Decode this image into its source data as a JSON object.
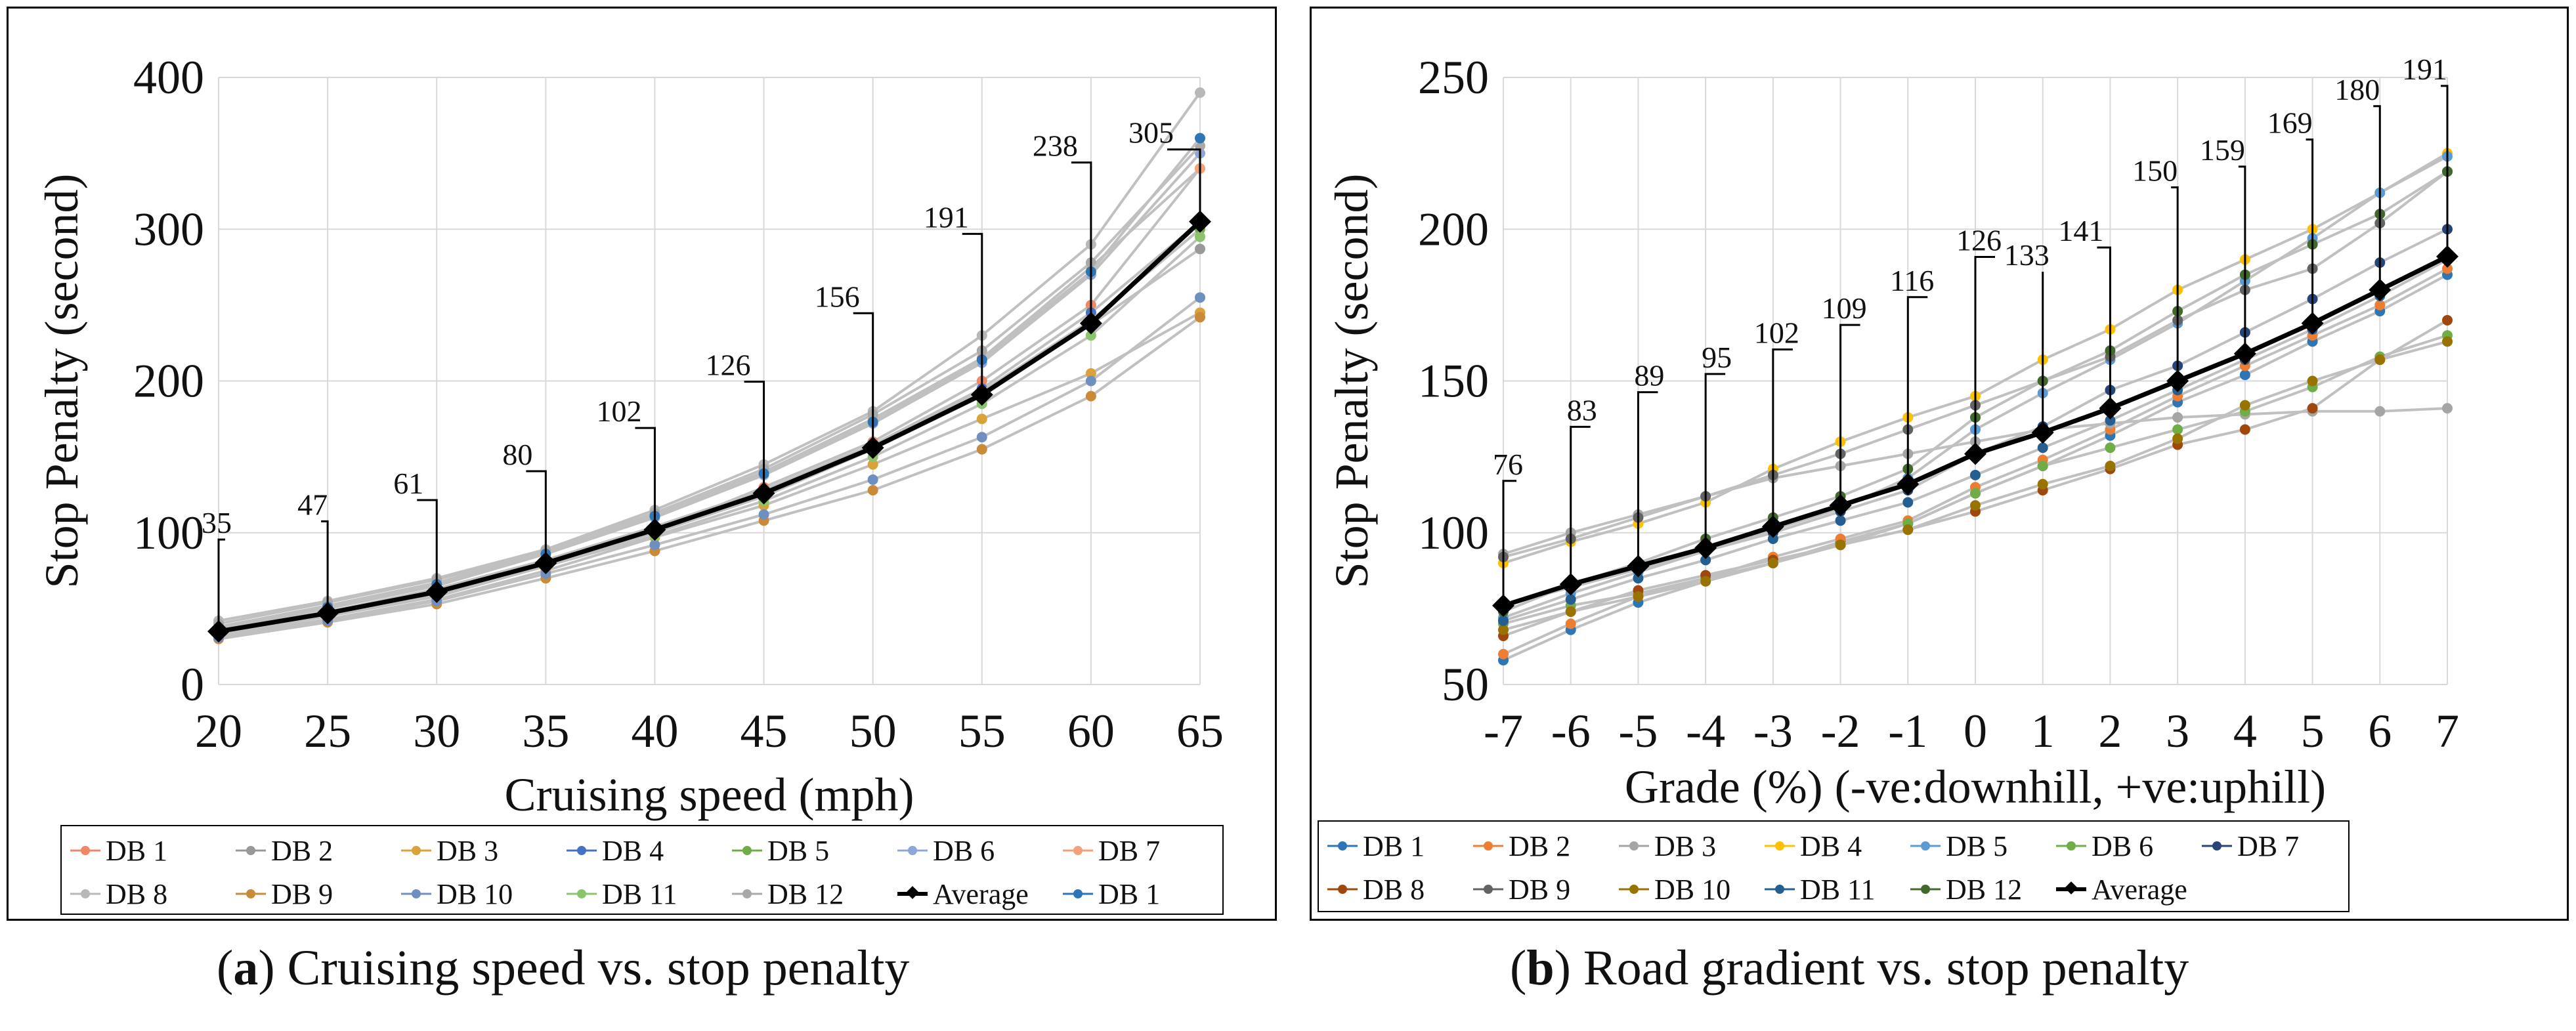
{
  "chart_data": [
    {
      "type": "line",
      "panel_letter": "a",
      "caption": "Cruising speed vs. stop penalty",
      "xlabel": "Cruising speed (mph)",
      "ylabel": "Stop Penalty (second)",
      "x": [
        20,
        25,
        30,
        35,
        40,
        45,
        50,
        55,
        60,
        65
      ],
      "xticks": [
        "20",
        "25",
        "30",
        "35",
        "40",
        "45",
        "50",
        "55",
        "60",
        "65"
      ],
      "yticks": [
        "0",
        "100",
        "200",
        "300",
        "400"
      ],
      "ylim": [
        0,
        400
      ],
      "grid": true,
      "legend_position": "bottom",
      "annotations": [
        "35",
        "47",
        "61",
        "80",
        "102",
        "126",
        "156",
        "191",
        "238",
        "305"
      ],
      "series": [
        {
          "name": "DB 1",
          "color": "#ee8866",
          "values": [
            33,
            45,
            58,
            78,
            101,
            130,
            160,
            200,
            250,
            340
          ]
        },
        {
          "name": "DB 2",
          "color": "#999999",
          "values": [
            34,
            46,
            59,
            79,
            100,
            124,
            155,
            190,
            237,
            287
          ]
        },
        {
          "name": "DB 3",
          "color": "#d9a23a",
          "values": [
            32,
            43,
            56,
            75,
            97,
            118,
            145,
            175,
            205,
            245
          ]
        },
        {
          "name": "DB 4",
          "color": "#4472c4",
          "values": [
            36,
            48,
            63,
            82,
            104,
            128,
            158,
            195,
            245,
            305
          ]
        },
        {
          "name": "DB 5",
          "color": "#70ad47",
          "values": [
            35,
            47,
            61,
            81,
            102,
            127,
            157,
            193,
            240,
            300
          ]
        },
        {
          "name": "DB 6",
          "color": "#8fa6d8",
          "values": [
            37,
            50,
            65,
            86,
            110,
            138,
            172,
            212,
            270,
            350
          ]
        },
        {
          "name": "DB 7",
          "color": "#f4a07a",
          "values": [
            38,
            52,
            67,
            87,
            112,
            140,
            175,
            215,
            275,
            340
          ]
        },
        {
          "name": "DB 8",
          "color": "#b8b8b8",
          "values": [
            42,
            55,
            70,
            89,
            115,
            145,
            180,
            230,
            290,
            390
          ]
        },
        {
          "name": "DB 9",
          "color": "#c98a3a",
          "values": [
            30,
            41,
            53,
            70,
            88,
            108,
            128,
            155,
            190,
            242
          ]
        },
        {
          "name": "DB 10",
          "color": "#6f8fc0",
          "values": [
            31,
            42,
            55,
            73,
            92,
            112,
            135,
            163,
            200,
            255
          ]
        },
        {
          "name": "DB 11",
          "color": "#8cc46e",
          "values": [
            34,
            46,
            59,
            78,
            98,
            121,
            150,
            185,
            230,
            295
          ]
        },
        {
          "name": "DB 12",
          "color": "#a9a9a9",
          "values": [
            40,
            54,
            69,
            88,
            113,
            142,
            178,
            220,
            278,
            355
          ]
        },
        {
          "name": "Average",
          "color": "#000000",
          "values": [
            35,
            47,
            61,
            80,
            102,
            126,
            156,
            191,
            238,
            305
          ]
        },
        {
          "name": "DB 1",
          "color": "#2e75b6",
          "values": [
            36,
            51,
            66,
            86,
            111,
            139,
            173,
            214,
            272,
            360
          ]
        }
      ]
    },
    {
      "type": "line",
      "panel_letter": "b",
      "caption": "Road gradient vs. stop penalty",
      "xlabel": "Grade (%) (-ve:downhill, +ve:uphill)",
      "ylabel": "Stop Penalty (second)",
      "x": [
        -7,
        -6,
        -5,
        -4,
        -3,
        -2,
        -1,
        0,
        1,
        2,
        3,
        4,
        5,
        6,
        7
      ],
      "xticks": [
        "-7",
        "-6",
        "-5",
        "-4",
        "-3",
        "-2",
        "-1",
        "0",
        "1",
        "2",
        "3",
        "4",
        "5",
        "6",
        "7"
      ],
      "yticks": [
        "50",
        "100",
        "150",
        "200",
        "250"
      ],
      "ylim": [
        50,
        250
      ],
      "grid": true,
      "legend_position": "bottom",
      "annotations": [
        "76",
        "83",
        "89",
        "95",
        "102",
        "109",
        "116",
        "126",
        "133",
        "141",
        "150",
        "159",
        "169",
        "180",
        "191"
      ],
      "series": [
        {
          "name": "DB 1",
          "color": "#2e75b6",
          "values": [
            58,
            68,
            77,
            84,
            90,
            97,
            103,
            113,
            122,
            132,
            143,
            152,
            163,
            173,
            185
          ]
        },
        {
          "name": "DB 2",
          "color": "#ed7d31",
          "values": [
            60,
            70,
            79,
            85,
            92,
            98,
            104,
            115,
            124,
            134,
            145,
            155,
            165,
            175,
            187
          ]
        },
        {
          "name": "DB 3",
          "color": "#a5a5a5",
          "values": [
            93,
            100,
            106,
            112,
            118,
            122,
            126,
            130,
            134,
            136,
            138,
            139,
            140,
            140,
            141
          ]
        },
        {
          "name": "DB 4",
          "color": "#ffc000",
          "values": [
            90,
            97,
            103,
            110,
            121,
            130,
            138,
            145,
            157,
            167,
            180,
            190,
            200,
            212,
            225
          ]
        },
        {
          "name": "DB 5",
          "color": "#5b9bd5",
          "values": [
            72,
            80,
            87,
            94,
            101,
            108,
            118,
            134,
            146,
            157,
            169,
            183,
            197,
            212,
            224
          ]
        },
        {
          "name": "DB 6",
          "color": "#70ad47",
          "values": [
            70,
            76,
            80,
            85,
            90,
            96,
            103,
            113,
            122,
            128,
            134,
            140,
            148,
            158,
            165
          ]
        },
        {
          "name": "DB 7",
          "color": "#264478",
          "values": [
            76,
            82,
            88,
            94,
            100,
            107,
            114,
            126,
            135,
            147,
            155,
            166,
            177,
            189,
            200
          ]
        },
        {
          "name": "DB 8",
          "color": "#9e480e",
          "values": [
            66,
            74,
            81,
            86,
            91,
            96,
            101,
            107,
            114,
            121,
            129,
            134,
            141,
            157,
            170
          ]
        },
        {
          "name": "DB 9",
          "color": "#636363",
          "values": [
            92,
            98,
            105,
            112,
            119,
            126,
            134,
            142,
            150,
            158,
            170,
            180,
            187,
            202,
            219
          ]
        },
        {
          "name": "DB 10",
          "color": "#997300",
          "values": [
            68,
            74,
            79,
            84,
            90,
            96,
            101,
            109,
            116,
            122,
            131,
            142,
            150,
            157,
            163
          ]
        },
        {
          "name": "DB 11",
          "color": "#255e91",
          "values": [
            71,
            78,
            85,
            91,
            98,
            104,
            110,
            119,
            128,
            137,
            147,
            157,
            167,
            178,
            190
          ]
        },
        {
          "name": "DB 12",
          "color": "#43682b",
          "values": [
            74,
            83,
            90,
            98,
            105,
            112,
            121,
            138,
            150,
            160,
            173,
            185,
            195,
            205,
            219
          ]
        },
        {
          "name": "Average",
          "color": "#000000",
          "values": [
            76,
            83,
            89,
            95,
            102,
            109,
            116,
            126,
            133,
            141,
            150,
            159,
            169,
            180,
            191
          ]
        }
      ]
    }
  ]
}
